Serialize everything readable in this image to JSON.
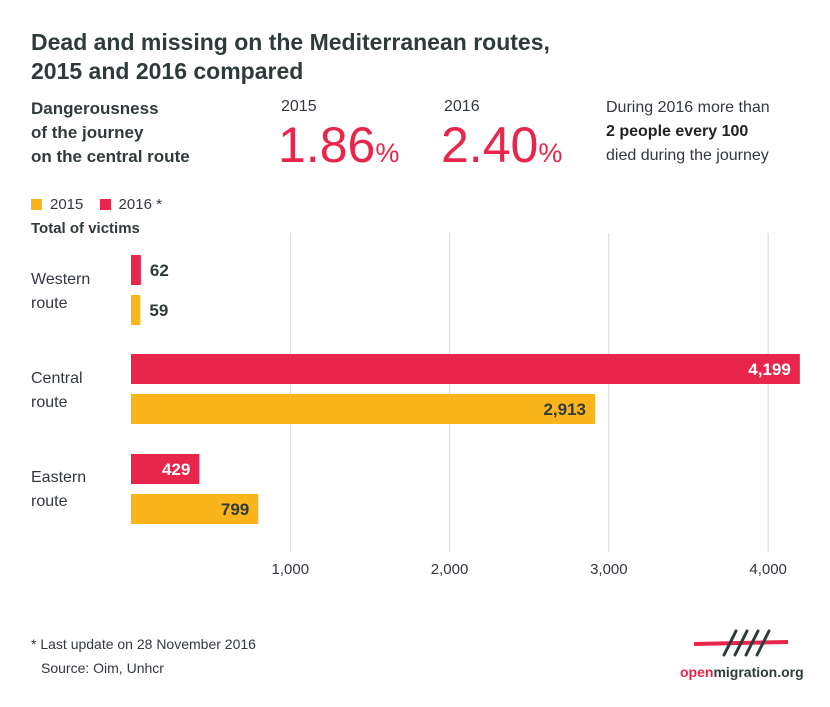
{
  "title": {
    "line1": "Dead and missing on the Mediterranean routes,",
    "line2": "2015 and 2016 compared"
  },
  "danger": {
    "label_lines": [
      "Dangerousness",
      "of the journey",
      "on the central route"
    ],
    "y2015_label": "2015",
    "y2015_value": "1.86",
    "y2016_label": "2016",
    "y2016_value": "2.40",
    "pct_symbol": "%"
  },
  "note": {
    "line1": "During 2016 more than",
    "line2": "2 people every 100",
    "line3": "died during the journey"
  },
  "legend": {
    "items": [
      {
        "label": "2015",
        "color": "#fbb419"
      },
      {
        "label": "2016 *",
        "color": "#e8264b"
      }
    ]
  },
  "total_label": "Total of victims",
  "chart_data": {
    "type": "bar",
    "orientation": "horizontal",
    "categories": [
      "Western route",
      "Central route",
      "Eastern route"
    ],
    "category_lines": [
      [
        "Western",
        "route"
      ],
      [
        "Central",
        "route"
      ],
      [
        "Eastern",
        "route"
      ]
    ],
    "series": [
      {
        "name": "2016 *",
        "color": "#e8264b",
        "values": [
          62,
          4199,
          429
        ],
        "labels": [
          "62",
          "4,199",
          "429"
        ]
      },
      {
        "name": "2015",
        "color": "#fbb419",
        "values": [
          59,
          2913,
          799
        ],
        "labels": [
          "59",
          "2,913",
          "799"
        ]
      }
    ],
    "xlim": [
      0,
      4200
    ],
    "xticks": [
      1000,
      2000,
      3000,
      4000
    ],
    "xtick_labels": [
      "1,000",
      "2,000",
      "3,000",
      "4,000"
    ],
    "grid": true,
    "legend": "top-left"
  },
  "footnote": "* Last update on 28 November 2016",
  "source": "Source: Oim, Unhcr",
  "logo": {
    "part1": "open",
    "part2": "migration.org",
    "icon": "openmigration-logo-icon"
  }
}
